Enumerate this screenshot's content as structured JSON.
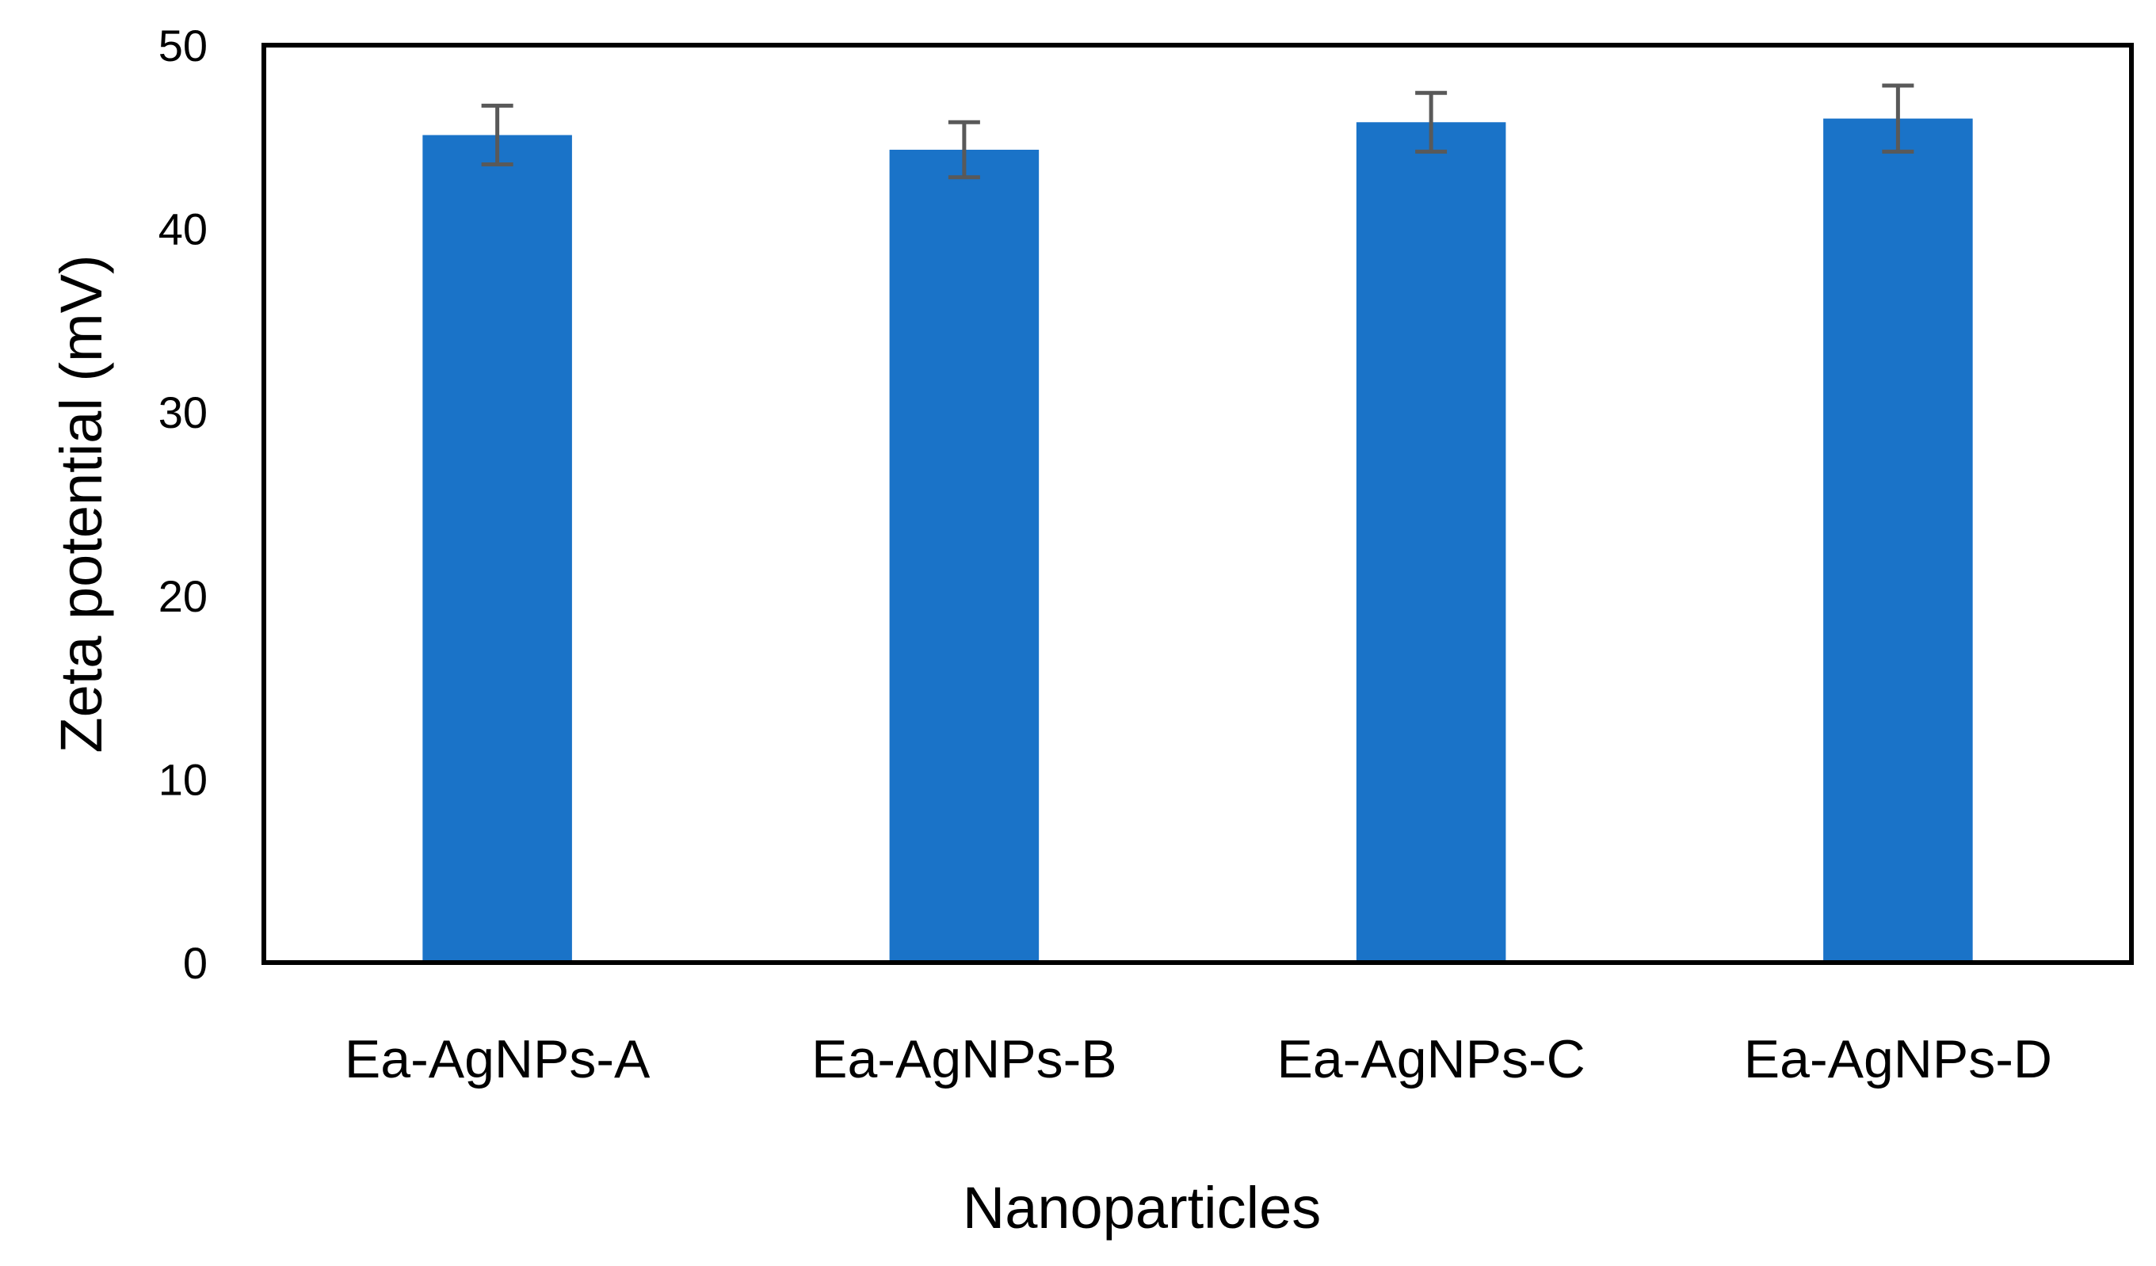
{
  "chart_data": {
    "type": "bar",
    "title": "",
    "xlabel": "Nanoparticles",
    "ylabel": "Zeta potential (mV)",
    "ylim": [
      0,
      50
    ],
    "yticks": [
      0,
      10,
      20,
      30,
      40,
      50
    ],
    "categories": [
      "Ea-AgNPs-A",
      "Ea-AgNPs-B",
      "Ea-AgNPs-C",
      "Ea-AgNPs-D"
    ],
    "values": [
      45.1,
      44.3,
      45.8,
      46.0
    ],
    "errors": [
      1.6,
      1.5,
      1.6,
      1.8
    ],
    "grid": false,
    "legend": "none",
    "bar_color": "#1a73c8",
    "error_bar_color": "#595959"
  }
}
